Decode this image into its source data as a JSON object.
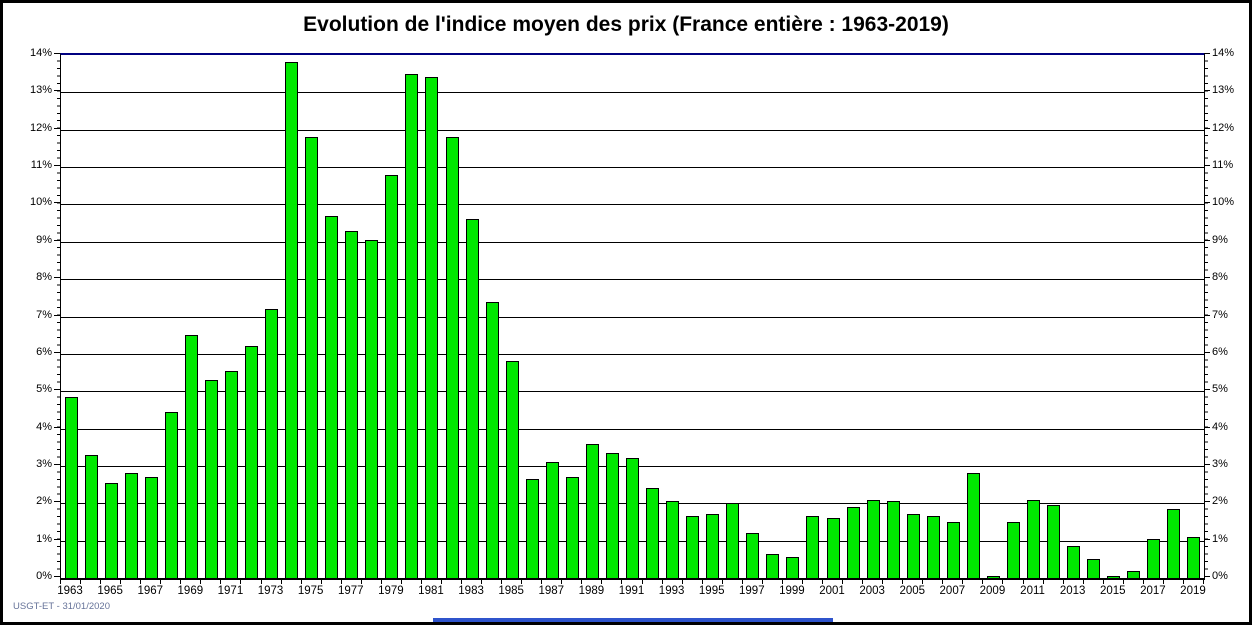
{
  "title": "Evolution de l'indice moyen des prix (France entière : 1963-2019)",
  "footer": {
    "credit": "USGT-ET - 31/01/2020"
  },
  "colors": {
    "bar_fill": "#00e800",
    "bar_border": "#000000",
    "top_border_line": "#000080",
    "gridline": "#000000",
    "frame": "#000000",
    "footer_text": "#667399",
    "bottom_accent_line": "#2f54cc",
    "background": "#ffffff"
  },
  "chart_data": {
    "type": "bar",
    "title": "Evolution de l'indice moyen des prix (France entière : 1963-2019)",
    "categories": [
      1963,
      1964,
      1965,
      1966,
      1967,
      1968,
      1969,
      1970,
      1971,
      1972,
      1973,
      1974,
      1975,
      1976,
      1977,
      1978,
      1979,
      1980,
      1981,
      1982,
      1983,
      1984,
      1985,
      1986,
      1987,
      1988,
      1989,
      1990,
      1991,
      1992,
      1993,
      1994,
      1995,
      1996,
      1997,
      1998,
      1999,
      2000,
      2001,
      2002,
      2003,
      2004,
      2005,
      2006,
      2007,
      2008,
      2009,
      2010,
      2011,
      2012,
      2013,
      2014,
      2015,
      2016,
      2017,
      2018,
      2019
    ],
    "values": [
      4.85,
      3.3,
      2.55,
      2.8,
      2.7,
      4.45,
      6.5,
      5.3,
      5.55,
      6.2,
      7.2,
      13.8,
      11.8,
      9.7,
      9.3,
      9.05,
      10.8,
      13.5,
      13.4,
      11.8,
      9.6,
      7.4,
      5.8,
      2.65,
      3.1,
      2.7,
      3.6,
      3.35,
      3.2,
      2.4,
      2.05,
      1.65,
      1.7,
      2.0,
      1.2,
      0.65,
      0.55,
      1.65,
      1.6,
      1.9,
      2.1,
      2.05,
      1.7,
      1.65,
      1.5,
      2.8,
      0.05,
      1.5,
      2.1,
      1.95,
      0.85,
      0.5,
      0.05,
      0.2,
      1.05,
      1.85,
      1.1
    ],
    "unit": "%",
    "xlabel": "",
    "ylabel": "",
    "ylim": [
      0,
      14
    ],
    "y_tick_step": 1,
    "y_minor_tick_step": 0.2,
    "y_tick_labels": [
      "0%",
      "1%",
      "2%",
      "3%",
      "4%",
      "5%",
      "6%",
      "7%",
      "8%",
      "9%",
      "10%",
      "11%",
      "12%",
      "13%",
      "14%"
    ],
    "x_tick_labels": [
      "1963",
      "1965",
      "1967",
      "1969",
      "1971",
      "1973",
      "1975",
      "1977",
      "1979",
      "1981",
      "1983",
      "1985",
      "1987",
      "1989",
      "1991",
      "1993",
      "1995",
      "1997",
      "1999",
      "2001",
      "2003",
      "2005",
      "2007",
      "2009",
      "2011",
      "2013",
      "2015",
      "2017",
      "2019"
    ],
    "grid": "horizontal-major",
    "legend": "none",
    "axes_on_both_sides": true,
    "bar_outline": true
  }
}
